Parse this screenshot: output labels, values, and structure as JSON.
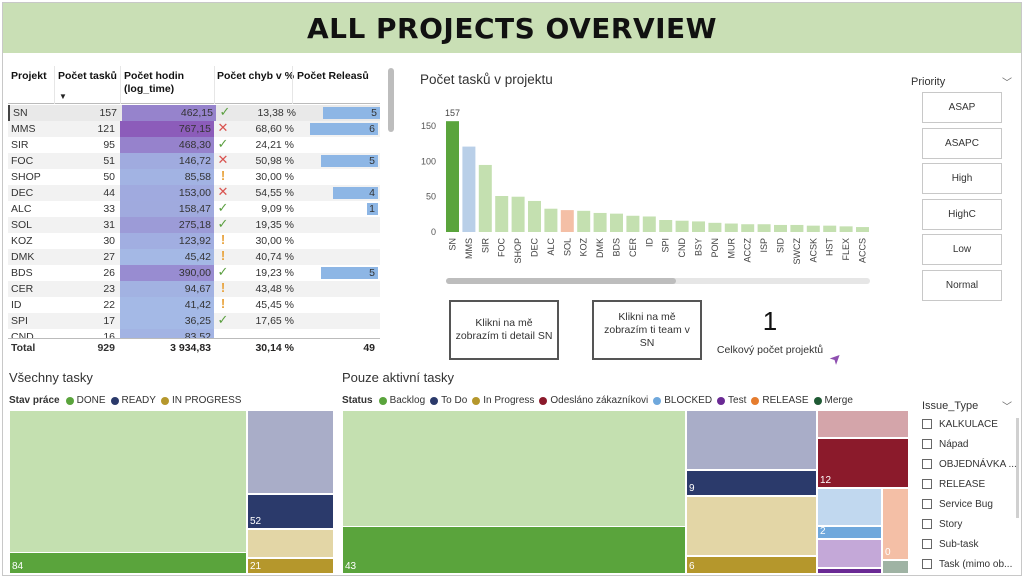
{
  "page_title": "ALL PROJECTS OVERVIEW",
  "table": {
    "headers": {
      "projekt": "Projekt",
      "tasks": "Počet tasků",
      "hours": "Počet hodin (log_time)",
      "errors": "Počet chyb v %",
      "releases": "Počet Releasů"
    },
    "rows": [
      {
        "projekt": "SN",
        "tasks": "157",
        "hours": "462,15",
        "errors": "13,38 %",
        "status": "check",
        "releases": "5"
      },
      {
        "projekt": "MMS",
        "tasks": "121",
        "hours": "767,15",
        "errors": "68,60 %",
        "status": "cross",
        "releases": "6"
      },
      {
        "projekt": "SIR",
        "tasks": "95",
        "hours": "468,30",
        "errors": "24,21 %",
        "status": "check",
        "releases": ""
      },
      {
        "projekt": "FOC",
        "tasks": "51",
        "hours": "146,72",
        "errors": "50,98 %",
        "status": "cross",
        "releases": "5"
      },
      {
        "projekt": "SHOP",
        "tasks": "50",
        "hours": "85,58",
        "errors": "30,00 %",
        "status": "warn",
        "releases": ""
      },
      {
        "projekt": "DEC",
        "tasks": "44",
        "hours": "153,00",
        "errors": "54,55 %",
        "status": "cross",
        "releases": "4"
      },
      {
        "projekt": "ALC",
        "tasks": "33",
        "hours": "158,47",
        "errors": "9,09 %",
        "status": "check",
        "releases": "1"
      },
      {
        "projekt": "SOL",
        "tasks": "31",
        "hours": "275,18",
        "errors": "19,35 %",
        "status": "check",
        "releases": ""
      },
      {
        "projekt": "KOZ",
        "tasks": "30",
        "hours": "123,92",
        "errors": "30,00 %",
        "status": "warn",
        "releases": ""
      },
      {
        "projekt": "DMK",
        "tasks": "27",
        "hours": "45,42",
        "errors": "40,74 %",
        "status": "warn",
        "releases": ""
      },
      {
        "projekt": "BDS",
        "tasks": "26",
        "hours": "390,00",
        "errors": "19,23 %",
        "status": "check",
        "releases": "5"
      },
      {
        "projekt": "CER",
        "tasks": "23",
        "hours": "94,67",
        "errors": "43,48 %",
        "status": "warn",
        "releases": ""
      },
      {
        "projekt": "ID",
        "tasks": "22",
        "hours": "41,42",
        "errors": "45,45 %",
        "status": "warn",
        "releases": ""
      },
      {
        "projekt": "SPI",
        "tasks": "17",
        "hours": "36,25",
        "errors": "17,65 %",
        "status": "check",
        "releases": ""
      },
      {
        "projekt": "CND",
        "tasks": "16",
        "hours": "83,52",
        "errors": "",
        "status": "",
        "releases": ""
      }
    ],
    "total": {
      "label": "Total",
      "tasks": "929",
      "hours": "3 934,83",
      "errors": "30,14 %",
      "releases": "49"
    },
    "status_colors": {
      "check": "#5a9f3f",
      "cross": "#d9534f",
      "warn": "#e8a33d"
    }
  },
  "chart_data": {
    "type": "bar",
    "title": "Počet tasků v projektu",
    "categories": [
      "SN",
      "MMS",
      "SIR",
      "FOC",
      "SHOP",
      "DEC",
      "ALC",
      "SOL",
      "KOZ",
      "DMK",
      "BDS",
      "CER",
      "ID",
      "SPI",
      "CND",
      "BSY",
      "PON",
      "MUR",
      "ACCZ",
      "ISP",
      "SID",
      "SWCZ",
      "ACSK",
      "HST",
      "FLEX",
      "ACCS"
    ],
    "values": [
      157,
      121,
      95,
      51,
      50,
      44,
      33,
      31,
      30,
      27,
      26,
      23,
      22,
      17,
      16,
      15,
      13,
      12,
      11,
      11,
      10,
      10,
      9,
      9,
      8,
      7
    ],
    "data_labels": {
      "SN": "157"
    },
    "ylim": [
      0,
      170
    ],
    "yticks": [
      0,
      50,
      100,
      150
    ],
    "colors": {
      "default": "#c4e0b0",
      "SN": "#5aa43c",
      "MMS": "#b9cfe8",
      "SOL": "#f4bfa6"
    },
    "grid": false
  },
  "buttons": {
    "detail": "Klikni na mě zobrazím ti detail SN",
    "team": "Klikni na mě zobrazím ti team v SN"
  },
  "card": {
    "value": "1",
    "label": "Celkový počet projektů"
  },
  "priority": {
    "title": "Priority",
    "options": [
      "ASAP",
      "ASAPC",
      "High",
      "HighC",
      "Low",
      "Normal"
    ]
  },
  "issue_type": {
    "title": "Issue_Type",
    "options": [
      "KALKULACE",
      "Nápad",
      "OBJEDNÁVKA ...",
      "RELEASE",
      "Service Bug",
      "Story",
      "Sub-task",
      "Task (mimo ob..."
    ]
  },
  "treemap_all": {
    "title": "Všechny tasky",
    "legend_title": "Stav práce",
    "legend": [
      {
        "label": "DONE",
        "color": "#5aa43c"
      },
      {
        "label": "READY",
        "color": "#2b3a6b"
      },
      {
        "label": "IN PROGRESS",
        "color": "#b5972c"
      }
    ],
    "labels": {
      "done": "84",
      "ready": "52",
      "inprogress": "21"
    }
  },
  "treemap_active": {
    "title": "Pouze aktivní tasky",
    "legend_title": "Status",
    "legend": [
      {
        "label": "Backlog",
        "color": "#5aa43c"
      },
      {
        "label": "To Do",
        "color": "#2b3a6b"
      },
      {
        "label": "In Progress",
        "color": "#b5972c"
      },
      {
        "label": "Odesláno zákazníkovi",
        "color": "#8b1a2b"
      },
      {
        "label": "BLOCKED",
        "color": "#6fa8dc"
      },
      {
        "label": "Test",
        "color": "#6a2a94"
      },
      {
        "label": "RELEASE",
        "color": "#e57c2e"
      },
      {
        "label": "Merge",
        "color": "#1f5a34"
      }
    ],
    "labels": {
      "backlog": "43",
      "todo": "9",
      "inprogress": "6",
      "odeslano": "12",
      "blocked": "2",
      "release": "0"
    }
  }
}
